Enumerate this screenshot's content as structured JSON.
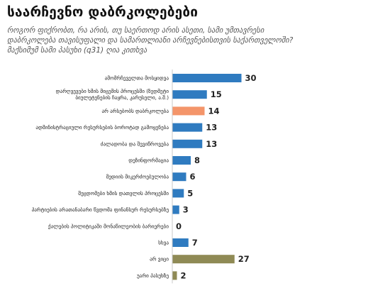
{
  "title": "საარჩევნო დაბრკოლებები",
  "subtitle": [
    "როგორ ფიქრობთ, რა არის, თუ საერთოდ არის ასეთი, სამი უმთავრესი",
    "დაბრკოლება თავისუფალი და სამართლიანი არჩევნებისთვის საქართველოში?",
    "მაქსიმუმ სამი პასუხი (q31) ღია კითხვა"
  ],
  "colors": {
    "blue": "#2f7bc0",
    "orange": "#f4956a",
    "olive": "#8f8a55",
    "axis": "#c9c9c9"
  },
  "chart_data": {
    "type": "bar",
    "orientation": "horizontal",
    "xlim": [
      0,
      32
    ],
    "categories": [
      [
        "ამომრჩეველთა მოსყიდვა"
      ],
      [
        "დარღვევები ხმის მიცემის პროცესში (ზედმეტი",
        "ბიულეტენების ჩაყრა, კარუსელი, ა.შ.)"
      ],
      [
        "არ არსებობს დაბრკოლება"
      ],
      [
        "ადმინისტრაციული რესურსების ბოროტად გამოყენება"
      ],
      [
        "ძალადობა და შევიწროვება"
      ],
      [
        "დეზინფორმაცია"
      ],
      [
        "მედიის მიკერძოებულობა"
      ],
      [
        "შეცდომები ხმის დათვლის პროცესში"
      ],
      [
        "პარტიების არათანაბარი წვდომა ფინანსურ რესურსებზე"
      ],
      [
        "ქალების პოლიტიკაში მონაწილეობის ბარიერები"
      ],
      [
        "სხვა"
      ],
      [
        "არ ვიცი"
      ],
      [
        "უარი პასუხზე"
      ]
    ],
    "values": [
      30,
      15,
      14,
      13,
      13,
      8,
      6,
      5,
      3,
      0,
      7,
      27,
      2
    ],
    "bar_colors": [
      "blue",
      "blue",
      "orange",
      "blue",
      "blue",
      "blue",
      "blue",
      "blue",
      "blue",
      "blue",
      "blue",
      "olive",
      "olive"
    ]
  }
}
